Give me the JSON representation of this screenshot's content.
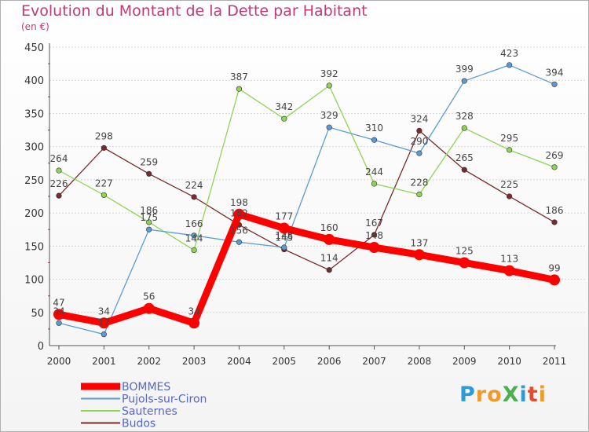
{
  "title": "Evolution du Montant de la Dette par Habitant",
  "subtitle": "(en €)",
  "logo": {
    "text": "ProXiti",
    "letters": [
      "P",
      "r",
      "o",
      "X",
      "i",
      "t",
      "i"
    ],
    "colors": [
      "#2f9ad8",
      "#f09a2c",
      "#f09a2c",
      "#4caf50",
      "#2f9ad8",
      "#e64a2e",
      "#f09a2c"
    ]
  },
  "chart_data": {
    "type": "line",
    "x": [
      "2000",
      "2001",
      "2002",
      "2003",
      "2004",
      "2005",
      "2006",
      "2007",
      "2008",
      "2009",
      "2010",
      "2011"
    ],
    "ylim": [
      0,
      450
    ],
    "yticks": [
      0,
      50,
      100,
      150,
      200,
      250,
      300,
      350,
      400,
      450
    ],
    "grid": true,
    "legend": "bottom-left",
    "series": [
      {
        "name": "BOMMES",
        "color": "#ff0000",
        "values": [
          47,
          34,
          56,
          34,
          198,
          177,
          160,
          148,
          137,
          125,
          113,
          99
        ],
        "labels": [
          "47",
          "34",
          "56",
          "34",
          "198",
          "177",
          "160",
          "148",
          "137",
          "125",
          "113",
          "99"
        ]
      },
      {
        "name": "Pujols-sur-Ciron",
        "color": "#5b9bd5",
        "values": [
          34,
          17,
          175,
          166,
          156,
          148,
          329,
          310,
          290,
          399,
          423,
          394
        ],
        "labels": [
          "34",
          "17",
          "175",
          "166",
          "156",
          "148",
          "329",
          "310",
          "290",
          "399",
          "423",
          "394"
        ]
      },
      {
        "name": "Sauternes",
        "color": "#90d455",
        "values": [
          264,
          227,
          186,
          144,
          387,
          342,
          392,
          244,
          228,
          328,
          295,
          269
        ],
        "labels": [
          "264",
          "227",
          "186",
          "144",
          "387",
          "342",
          "392",
          "244",
          "228",
          "328",
          "295",
          "269"
        ]
      },
      {
        "name": "Budos",
        "color": "#7a2a2a",
        "values": [
          226,
          298,
          259,
          224,
          182,
          145,
          114,
          167,
          324,
          265,
          225,
          186
        ],
        "labels": [
          "226",
          "298",
          "259",
          "224",
          "182",
          "145",
          "114",
          "167",
          "324",
          "265",
          "225",
          "186"
        ]
      }
    ]
  }
}
